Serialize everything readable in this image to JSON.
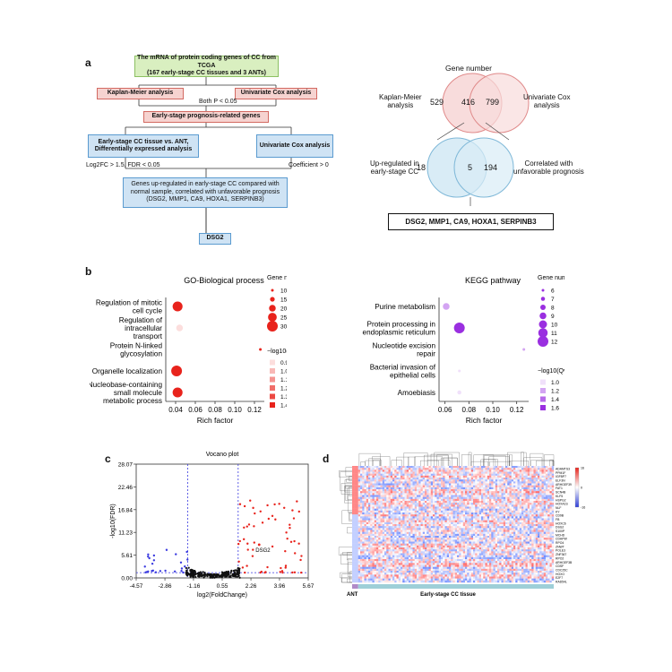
{
  "panels": {
    "a": "a",
    "b": "b",
    "c": "c",
    "d": "d"
  },
  "flow": {
    "top_line1": "The mRNA of protein coding genes of CC from TCGA",
    "top_line2": "(167 early-stage CC tissues and 3 ANTs)",
    "km": "Kaplan-Meier analysis",
    "cox": "Univariate Cox analysis",
    "both_p": "Both P < 0.05",
    "prognosis": "Early-stage prognosis-related genes",
    "deg_line1": "Early-stage CC tissue vs. ANT,",
    "deg_line2": "Differentially expressed analysis",
    "cox2": "Univariate Cox analysis",
    "log2fc": "Log2FC > 1.5, FDR < 0.05",
    "coef": "Coefficient > 0",
    "genes_line1": "Genes up-regulated in early-stage CC compared with",
    "genes_line2": "normal sample, correlated with unfavorable prognosis",
    "genes_line3": "(DSG2, MMP1, CA9, HOXA1, SERPINB3)",
    "dsg2": "DSG2"
  },
  "venn": {
    "title": "Gene number",
    "km_label_1": "Kaplan-Meier",
    "km_label_2": "analysis",
    "cox_label_1": "Univariate Cox",
    "cox_label_2": "analysis",
    "n_km": "529",
    "n_both": "416",
    "n_cox": "799",
    "up_label_1": "Up-regulated in",
    "up_label_2": "early-stage CC",
    "corr_label_1": "Correlated with",
    "corr_label_2": "unfavorable prognosis",
    "n_up": "18",
    "n_both2": "5",
    "n_corr": "194",
    "result": "DSG2, MMP1, CA9, HOXA1, SERPINB3"
  },
  "chart_data": [
    {
      "type": "scatter",
      "title": "GO-Biological process",
      "xlabel": "Rich factor",
      "xticks": [
        "0.04",
        "0.06",
        "0.08",
        "0.10",
        "0.12"
      ],
      "xlim": [
        0.03,
        0.13
      ],
      "categories": [
        "Regulation of mitotic cell cycle",
        "Regulation of intracellular transport",
        "Protein N-linked glycosylation",
        "Organelle localization",
        "Nucleobase-containing small molecule metabolic process"
      ],
      "points": [
        {
          "term": "Regulation of mitotic cell cycle",
          "rich": 0.042,
          "count": 28,
          "q": 1.4
        },
        {
          "term": "Regulation of intracellular transport",
          "rich": 0.044,
          "count": 20,
          "q": 0.9
        },
        {
          "term": "Protein N-linked glycosylation",
          "rich": 0.126,
          "count": 10,
          "q": 1.4
        },
        {
          "term": "Organelle localization",
          "rich": 0.041,
          "count": 30,
          "q": 1.4
        },
        {
          "term": "Nucleobase-containing small molecule metabolic process",
          "rich": 0.042,
          "count": 28,
          "q": 1.4
        }
      ],
      "legend_size_title": "Gene number",
      "legend_size": [
        "10",
        "15",
        "20",
        "25",
        "30"
      ],
      "legend_color_title": "−log10(Qvalue)",
      "legend_color": [
        "0.9",
        "1.0",
        "1.1",
        "1.2",
        "1.3",
        "1.4"
      ],
      "color": "#e8231c"
    },
    {
      "type": "scatter",
      "title": "KEGG pathway",
      "xlabel": "Rich factor",
      "xticks": [
        "0.06",
        "0.08",
        "0.10",
        "0.12"
      ],
      "xlim": [
        0.055,
        0.13
      ],
      "categories": [
        "Purine metabolism",
        "Protein processing in endoplasmic reticulum",
        "Nucleotide excision repair",
        "Bacterial invasion of epithelial cells",
        "Amoebiasis"
      ],
      "points": [
        {
          "term": "Purine metabolism",
          "rich": 0.061,
          "count": 9,
          "q": 1.2
        },
        {
          "term": "Protein processing in endoplasmic reticulum",
          "rich": 0.072,
          "count": 12,
          "q": 1.6
        },
        {
          "term": "Nucleotide excision repair",
          "rich": 0.126,
          "count": 6,
          "q": 1.2
        },
        {
          "term": "Bacterial invasion of epithelial cells",
          "rich": 0.072,
          "count": 6,
          "q": 1.0
        },
        {
          "term": "Amoebiasis",
          "rich": 0.072,
          "count": 7,
          "q": 1.0
        }
      ],
      "legend_size_title": "Gene number",
      "legend_size": [
        "6",
        "7",
        "8",
        "9",
        "10",
        "11",
        "12"
      ],
      "legend_color_title": "−log10(Qvalue)",
      "legend_color": [
        "1.0",
        "1.2",
        "1.4",
        "1.6"
      ],
      "color": "#9a2fe0"
    },
    {
      "type": "scatter",
      "title": "Vocano plot",
      "xlabel": "log2(FoldChange)",
      "ylabel": "-log10(FDR)",
      "xticks": [
        "-4.57",
        "-2.86",
        "-1.16",
        "0.55",
        "2.26",
        "3.96",
        "5.67"
      ],
      "yticks": [
        "0.00",
        "5.61",
        "11.23",
        "16.84",
        "22.46",
        "28.07"
      ],
      "xlim": [
        -4.57,
        5.67
      ],
      "ylim": [
        0,
        28.07
      ],
      "thresholds": {
        "x": [
          -1.5,
          1.5
        ],
        "y": 1.3
      },
      "annotation": "DSG2",
      "annotation_point": [
        2.75,
        8.2
      ]
    },
    {
      "type": "heatmap",
      "group_labels": [
        "ANT",
        "Early-stage CC tissue"
      ],
      "genes": [
        "ADAMTS3",
        "PPM1F",
        "IGFBP7",
        "ELF3N",
        "ARHGEF39",
        "FAT1",
        "SCN4B",
        "KLF5",
        "HSPG2",
        "HOXA1S",
        "NLF",
        "KY",
        "CD9B",
        "FB",
        "HOXC6",
        "DSG2",
        "S100P",
        "MCHD",
        "CDHPW",
        "RPO4",
        "ZNWT",
        "POLE3",
        "ZNF367",
        "RPO2",
        "ARHGEF3B",
        "CDSF",
        "CDC25C",
        "HOXO",
        "E2F7",
        "RAD54L"
      ],
      "scale": [
        "16",
        "0",
        "-16"
      ]
    }
  ]
}
